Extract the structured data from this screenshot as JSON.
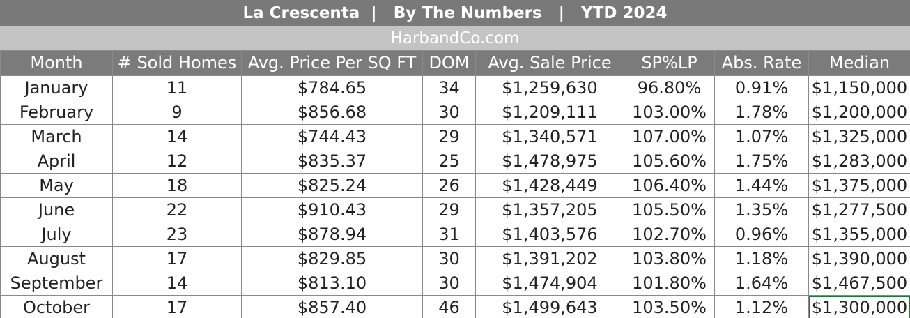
{
  "header": {
    "title": "La Crescenta  |   By The Numbers   |   YTD 2024",
    "subtitle": "HarbandCo.com"
  },
  "table": {
    "columns": [
      "Month",
      "# Sold Homes",
      "Avg. Price Per SQ FT",
      "DOM",
      "Avg. Sale Price",
      "SP%LP",
      "Abs. Rate",
      "Median"
    ],
    "rows": [
      [
        "January",
        "11",
        "$784.65",
        "34",
        "$1,259,630",
        "96.80%",
        "0.91%",
        "$1,150,000"
      ],
      [
        "February",
        "9",
        "$856.68",
        "30",
        "$1,209,111",
        "103.00%",
        "1.78%",
        "$1,200,000"
      ],
      [
        "March",
        "14",
        "$744.43",
        "29",
        "$1,340,571",
        "107.00%",
        "1.07%",
        "$1,325,000"
      ],
      [
        "April",
        "12",
        "$835.37",
        "25",
        "$1,478,975",
        "105.60%",
        "1.75%",
        "$1,283,000"
      ],
      [
        "May",
        "18",
        "$825.24",
        "26",
        "$1,428,449",
        "106.40%",
        "1.44%",
        "$1,375,000"
      ],
      [
        "June",
        "22",
        "$910.43",
        "29",
        "$1,357,205",
        "105.50%",
        "1.35%",
        "$1,277,500"
      ],
      [
        "July",
        "23",
        "$878.94",
        "31",
        "$1,403,576",
        "102.70%",
        "0.96%",
        "$1,355,000"
      ],
      [
        "August",
        "17",
        "$829.85",
        "30",
        "$1,391,202",
        "103.80%",
        "1.18%",
        "$1,390,000"
      ],
      [
        "September",
        "14",
        "$813.10",
        "30",
        "$1,474,904",
        "101.80%",
        "1.64%",
        "$1,467,500"
      ],
      [
        "October",
        "17",
        "$857.40",
        "46",
        "$1,499,643",
        "103.50%",
        "1.12%",
        "$1,300,000"
      ]
    ]
  },
  "colors": {
    "title_bar": "#797979",
    "subtitle_bar": "#c3c3c3",
    "header_row": "#7b7b7b",
    "selection": "#1d7a3c"
  }
}
